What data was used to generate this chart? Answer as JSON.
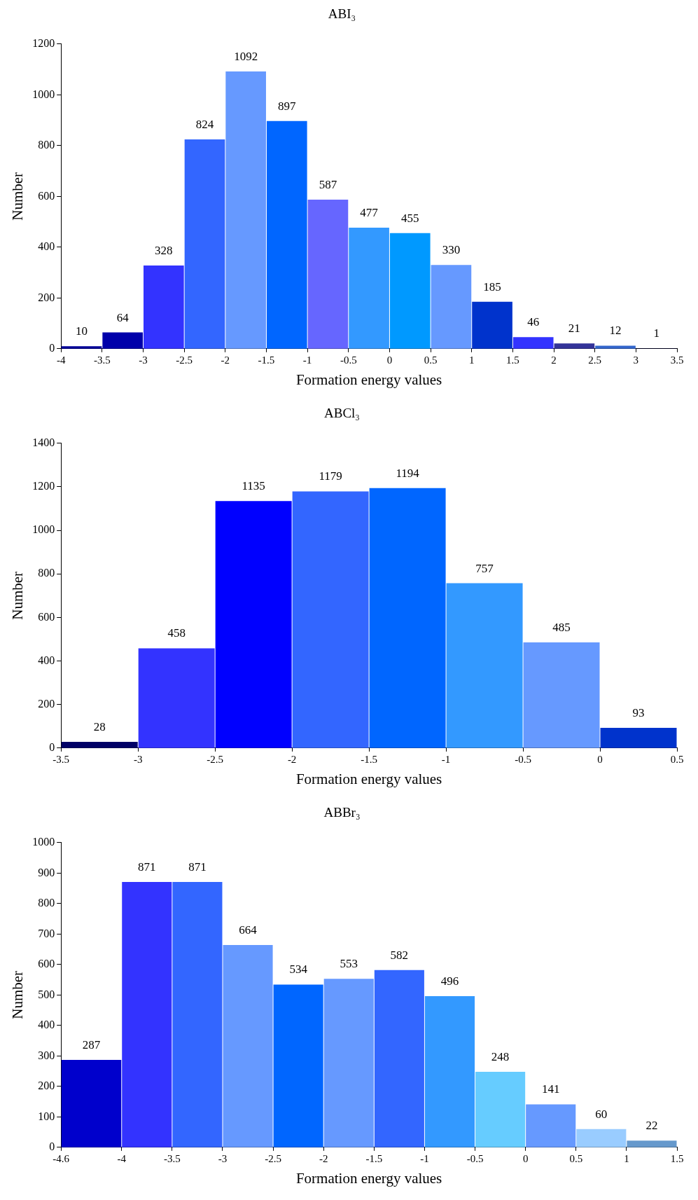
{
  "chart_data": [
    {
      "type": "histogram",
      "title": "ABI₃",
      "xlabel": "Formation energy values",
      "ylabel": "Number",
      "bins": [
        -4,
        -3.5,
        -3,
        -2.5,
        -2,
        -1.5,
        -1,
        -0.5,
        0,
        0.5,
        1,
        1.5,
        2,
        2.5,
        3,
        3.5
      ],
      "values": [
        10,
        64,
        328,
        824,
        1092,
        897,
        587,
        477,
        455,
        330,
        185,
        46,
        21,
        12,
        1
      ],
      "colors": [
        "#000099",
        "#0000aa",
        "#3333ff",
        "#3366ff",
        "#6699ff",
        "#0066ff",
        "#6666ff",
        "#3399ff",
        "#0099ff",
        "#6699ff",
        "#0033cc",
        "#3333ff",
        "#333399",
        "#3366cc",
        "#000066"
      ],
      "xlim": [
        -4,
        3.5
      ],
      "xticks": [
        -4,
        -3.5,
        -3,
        -2.5,
        -2,
        -1.5,
        -1,
        -0.5,
        0,
        0.5,
        1,
        1.5,
        2,
        2.5,
        3,
        3.5
      ],
      "ylim": [
        0,
        1200
      ],
      "yticks": [
        0,
        200,
        400,
        600,
        800,
        1000,
        1200
      ],
      "data_labels": true,
      "grid": false,
      "legend": false
    },
    {
      "type": "histogram",
      "title": "ABCl₃",
      "xlabel": "Formation energy values",
      "ylabel": "Number",
      "bins": [
        -3.5,
        -3,
        -2.5,
        -2,
        -1.5,
        -1,
        -0.5,
        0,
        0.5
      ],
      "values": [
        28,
        458,
        1135,
        1179,
        1194,
        757,
        485,
        93
      ],
      "colors": [
        "#000066",
        "#3333ff",
        "#0000ff",
        "#3366ff",
        "#0066ff",
        "#3399ff",
        "#6699ff",
        "#0033cc"
      ],
      "xlim": [
        -3.5,
        0.5
      ],
      "xticks": [
        -3.5,
        -3,
        -2.5,
        -2,
        -1.5,
        -1,
        -0.5,
        0,
        0.5
      ],
      "ylim": [
        0,
        1400
      ],
      "yticks": [
        0,
        200,
        400,
        600,
        800,
        1000,
        1200,
        1400
      ],
      "data_labels": true,
      "grid": false,
      "legend": false
    },
    {
      "type": "histogram",
      "title": "ABBr₃",
      "xlabel": "Formation energy values",
      "ylabel": "Number",
      "bins": [
        -4.6,
        -4,
        -3.5,
        -3,
        -2.5,
        -2,
        -1.5,
        -1,
        -0.5,
        0,
        0.5,
        1,
        1.5
      ],
      "values": [
        287,
        871,
        871,
        664,
        534,
        553,
        582,
        496,
        248,
        141,
        60,
        22
      ],
      "colors": [
        "#0000cc",
        "#3333ff",
        "#3366ff",
        "#6699ff",
        "#0066ff",
        "#6699ff",
        "#3366ff",
        "#3399ff",
        "#66ccff",
        "#6699ff",
        "#99ccff",
        "#6699cc"
      ],
      "xlim": [
        -4.6,
        1.5
      ],
      "xticks": [
        -4.6,
        -4,
        -3.5,
        -3,
        -2.5,
        -2,
        -1.5,
        -1,
        -0.5,
        0,
        0.5,
        1,
        1.5
      ],
      "ylim": [
        0,
        1000
      ],
      "yticks": [
        0,
        100,
        200,
        300,
        400,
        500,
        600,
        700,
        800,
        900,
        1000
      ],
      "data_labels": true,
      "grid": false,
      "legend": false
    }
  ]
}
